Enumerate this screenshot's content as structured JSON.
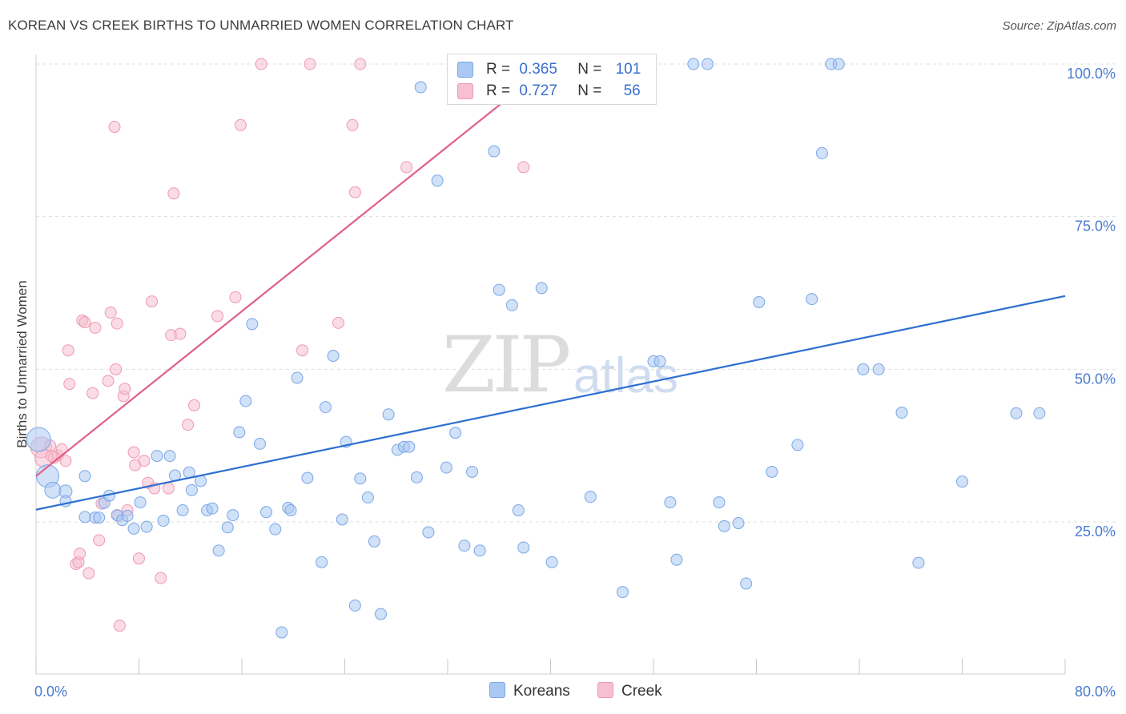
{
  "title": "KOREAN VS CREEK BIRTHS TO UNMARRIED WOMEN CORRELATION CHART",
  "source": "Source: ZipAtlas.com",
  "watermark": {
    "zip": "ZIP",
    "atlas": "atlas"
  },
  "legend": {
    "korean": {
      "r_label": "R =",
      "r_value": "0.365",
      "n_label": "N =",
      "n_value": "101"
    },
    "creek": {
      "r_label": "R =",
      "r_value": "0.727",
      "n_label": "N =",
      "n_value": "56"
    }
  },
  "bottom_legend": {
    "korean": "Koreans",
    "creek": "Creek"
  },
  "colors": {
    "korean_fill": "#a9c8f2",
    "korean_stroke": "#7aa7e6",
    "korean_line": "#2e6fd0",
    "creek_fill": "#f6c0d0",
    "creek_stroke": "#ef98b3",
    "creek_line": "#e0608a",
    "axis_text": "#4a7bd0"
  },
  "chart_data": {
    "type": "scatter",
    "title": "KOREAN VS CREEK BIRTHS TO UNMARRIED WOMEN CORRELATION CHART",
    "xlabel": "",
    "ylabel": "Births to Unmarried Women",
    "xlim": [
      0,
      80
    ],
    "ylim": [
      0,
      105
    ],
    "x_tick_labels": [
      "0.0%",
      "80.0%"
    ],
    "y_tick_values": [
      25,
      50,
      75,
      100
    ],
    "y_tick_labels": [
      "25.0%",
      "50.0%",
      "75.0%",
      "100.0%"
    ],
    "grid": "horizontal dashed",
    "legend_position": "top-center",
    "series": [
      {
        "name": "Koreans",
        "r": 0.365,
        "n": 101,
        "trend": {
          "x": [
            0,
            80
          ],
          "y": [
            27,
            62
          ]
        },
        "points": [
          [
            0.2,
            38.5,
            15
          ],
          [
            0.9,
            32.5,
            14
          ],
          [
            1.3,
            30.2,
            10
          ],
          [
            2.3,
            30,
            8
          ],
          [
            2.3,
            28.4,
            7
          ],
          [
            3.8,
            25.8,
            7
          ],
          [
            3.8,
            32.5,
            7
          ],
          [
            4.6,
            25.7,
            7
          ],
          [
            4.9,
            25.7,
            7
          ],
          [
            5.3,
            28.1,
            7
          ],
          [
            5.7,
            29.3,
            7
          ],
          [
            6.3,
            26.1,
            7
          ],
          [
            6.7,
            25.3,
            7
          ],
          [
            7.1,
            26,
            7
          ],
          [
            7.6,
            23.9,
            7
          ],
          [
            8.1,
            28.2,
            7
          ],
          [
            8.6,
            24.2,
            7
          ],
          [
            9.4,
            35.8,
            7
          ],
          [
            9.9,
            25.2,
            7
          ],
          [
            10.4,
            35.8,
            7
          ],
          [
            10.8,
            32.6,
            7
          ],
          [
            11.4,
            26.9,
            7
          ],
          [
            11.9,
            33.1,
            7
          ],
          [
            12.1,
            30.2,
            7
          ],
          [
            12.8,
            31.7,
            7
          ],
          [
            13.3,
            26.9,
            7
          ],
          [
            13.7,
            27.2,
            7
          ],
          [
            14.2,
            20.3,
            7
          ],
          [
            14.9,
            24.1,
            7
          ],
          [
            15.3,
            26.1,
            7
          ],
          [
            15.8,
            39.7,
            7
          ],
          [
            16.3,
            44.8,
            7
          ],
          [
            16.8,
            57.4,
            7
          ],
          [
            17.4,
            37.8,
            7
          ],
          [
            17.9,
            26.6,
            7
          ],
          [
            18.6,
            23.8,
            7
          ],
          [
            19.1,
            6.9,
            7
          ],
          [
            19.6,
            27.3,
            7
          ],
          [
            19.8,
            26.9,
            7
          ],
          [
            20.3,
            48.6,
            7
          ],
          [
            21.1,
            32.2,
            7
          ],
          [
            22.2,
            18.4,
            7
          ],
          [
            22.5,
            43.8,
            7
          ],
          [
            23.1,
            52.2,
            7
          ],
          [
            23.8,
            25.4,
            7
          ],
          [
            24.1,
            38.1,
            7
          ],
          [
            24.8,
            11.3,
            7
          ],
          [
            25.2,
            32.1,
            7
          ],
          [
            25.8,
            29,
            7
          ],
          [
            26.3,
            21.8,
            7
          ],
          [
            26.8,
            9.9,
            7
          ],
          [
            27.4,
            42.6,
            7
          ],
          [
            28.1,
            36.8,
            7
          ],
          [
            28.6,
            37.3,
            7
          ],
          [
            29.0,
            37.3,
            7
          ],
          [
            29.6,
            32.3,
            7
          ],
          [
            29.9,
            96.2,
            7
          ],
          [
            30.5,
            23.3,
            7
          ],
          [
            31.2,
            80.9,
            7
          ],
          [
            31.9,
            33.9,
            7
          ],
          [
            32.6,
            39.6,
            7
          ],
          [
            33.3,
            21.1,
            7
          ],
          [
            33.9,
            33.2,
            7
          ],
          [
            34.5,
            20.3,
            7
          ],
          [
            35.1,
            100,
            7
          ],
          [
            35.6,
            85.7,
            7
          ],
          [
            36.0,
            63,
            7
          ],
          [
            37.0,
            60.5,
            7
          ],
          [
            37.5,
            26.9,
            7
          ],
          [
            37.9,
            20.8,
            7
          ],
          [
            39.3,
            63.3,
            7
          ],
          [
            40.1,
            18.4,
            7
          ],
          [
            40.6,
            100,
            7
          ],
          [
            41.3,
            100,
            7
          ],
          [
            41.5,
            100,
            7
          ],
          [
            43.1,
            29.1,
            7
          ],
          [
            45.6,
            13.5,
            7
          ],
          [
            48.0,
            51.3,
            7
          ],
          [
            48.5,
            51.3,
            7
          ],
          [
            49.3,
            28.2,
            7
          ],
          [
            49.8,
            18.8,
            7
          ],
          [
            51.1,
            100,
            7
          ],
          [
            52.2,
            100,
            7
          ],
          [
            53.1,
            28.2,
            7
          ],
          [
            53.5,
            24.3,
            7
          ],
          [
            54.6,
            24.8,
            7
          ],
          [
            55.2,
            14.9,
            7
          ],
          [
            56.2,
            61,
            7
          ],
          [
            57.2,
            33.2,
            7
          ],
          [
            59.2,
            37.6,
            7
          ],
          [
            60.3,
            61.5,
            7
          ],
          [
            61.1,
            85.4,
            7
          ],
          [
            61.8,
            100,
            7
          ],
          [
            62.4,
            100,
            7
          ],
          [
            64.3,
            50,
            7
          ],
          [
            65.5,
            50,
            7
          ],
          [
            67.3,
            42.9,
            7
          ],
          [
            68.6,
            18.3,
            7
          ],
          [
            72.0,
            31.6,
            7
          ],
          [
            76.2,
            42.8,
            7
          ],
          [
            78.0,
            42.8,
            7
          ]
        ]
      },
      {
        "name": "Creek",
        "r": 0.727,
        "n": 56,
        "trend": {
          "x": [
            0,
            40
          ],
          "y": [
            32.5,
            100
          ]
        },
        "points": [
          [
            0.4,
            37.2,
            13
          ],
          [
            0.6,
            35.4,
            11
          ],
          [
            1.1,
            37.5,
            7
          ],
          [
            1.4,
            35.5,
            7
          ],
          [
            1.7,
            35.9,
            7
          ],
          [
            2.0,
            36.9,
            7
          ],
          [
            2.3,
            35,
            7
          ],
          [
            2.6,
            47.6,
            7
          ],
          [
            3.1,
            18.1,
            7
          ],
          [
            3.3,
            18.4,
            7
          ],
          [
            3.4,
            19.8,
            7
          ],
          [
            3.6,
            58,
            7
          ],
          [
            3.8,
            57.7,
            7
          ],
          [
            4.1,
            16.6,
            7
          ],
          [
            4.4,
            46.1,
            7
          ],
          [
            4.6,
            56.8,
            7
          ],
          [
            4.9,
            22,
            7
          ],
          [
            5.1,
            28,
            7
          ],
          [
            5.6,
            48.1,
            7
          ],
          [
            5.8,
            59.3,
            7
          ],
          [
            6.1,
            89.7,
            7
          ],
          [
            6.2,
            50,
            7
          ],
          [
            6.3,
            57.5,
            7
          ],
          [
            6.5,
            8,
            7
          ],
          [
            6.8,
            45.6,
            7
          ],
          [
            6.9,
            46.8,
            7
          ],
          [
            7.1,
            26.9,
            7
          ],
          [
            7.6,
            36.4,
            7
          ],
          [
            7.7,
            34.3,
            7
          ],
          [
            8.0,
            19,
            7
          ],
          [
            8.4,
            35,
            7
          ],
          [
            8.7,
            31.4,
            7
          ],
          [
            9.0,
            61.1,
            7
          ],
          [
            9.7,
            15.8,
            7
          ],
          [
            10.3,
            30.5,
            7
          ],
          [
            10.5,
            55.6,
            7
          ],
          [
            10.7,
            78.8,
            7
          ],
          [
            11.8,
            40.9,
            7
          ],
          [
            12.3,
            44.1,
            7
          ],
          [
            14.1,
            58.7,
            7
          ],
          [
            15.5,
            61.8,
            7
          ],
          [
            15.9,
            90,
            7
          ],
          [
            17.5,
            100,
            7
          ],
          [
            20.7,
            53.1,
            7
          ],
          [
            21.3,
            100,
            7
          ],
          [
            23.5,
            57.6,
            7
          ],
          [
            24.6,
            90,
            7
          ],
          [
            24.8,
            79,
            7
          ],
          [
            25.2,
            100,
            7
          ],
          [
            28.8,
            83.1,
            7
          ],
          [
            37.9,
            83.1,
            7
          ],
          [
            2.5,
            53.1,
            7
          ],
          [
            6.4,
            26,
            7
          ],
          [
            9.2,
            30.5,
            7
          ],
          [
            11.2,
            55.8,
            7
          ],
          [
            1.2,
            35.8,
            7
          ]
        ]
      }
    ]
  }
}
